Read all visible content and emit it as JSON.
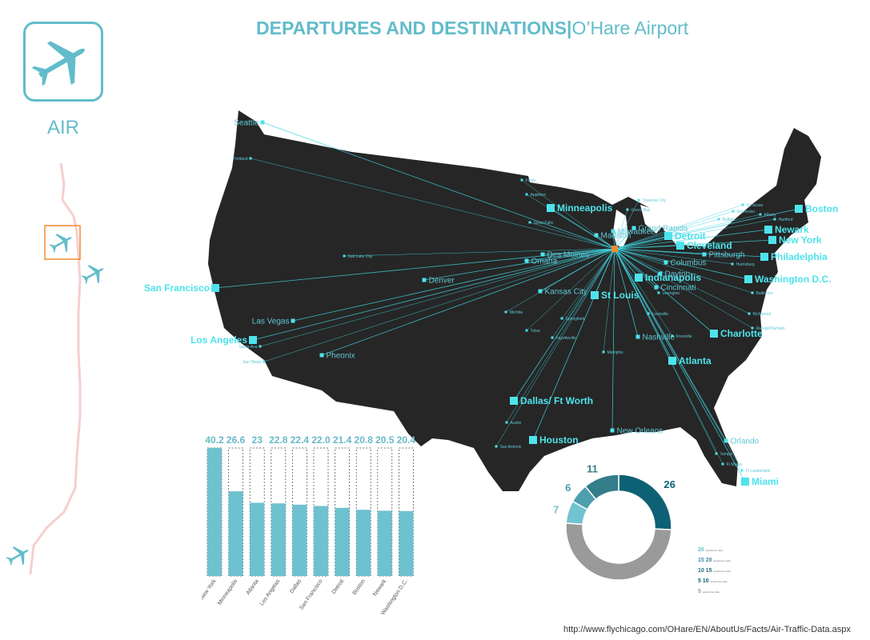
{
  "header": {
    "title_bold": "DEPARTURES AND DESTINATIONS",
    "separator": "|",
    "title_light": "O’Hare Airport"
  },
  "sidebar": {
    "mode_label": "AIR"
  },
  "source_url": "http://www.flychicago.com/OHare/EN/AboutUs/Facts/Air-Traffic-Data.aspx",
  "colors": {
    "accent": "#62bccb",
    "map_fill": "#262626",
    "route_line": "#3fd4e0",
    "city_marker": "#4ee3ec",
    "hub_marker": "#f08b2e",
    "bar": "#6ec1cf",
    "track": "#f6cfcf"
  },
  "icons": [
    "airplane-icon"
  ],
  "chart_data": [
    {
      "type": "map",
      "hub": "O’Hare Airport",
      "destinations": [
        {
          "name": "Seattle",
          "size": "small"
        },
        {
          "name": "Portland",
          "size": "tiny"
        },
        {
          "name": "San Francisco",
          "size": "large"
        },
        {
          "name": "Los Angeles",
          "size": "large"
        },
        {
          "name": "Santa Ana",
          "size": "tiny"
        },
        {
          "name": "San Diego",
          "size": "tiny"
        },
        {
          "name": "Las Vegas",
          "size": "small"
        },
        {
          "name": "Pheonix",
          "size": "small"
        },
        {
          "name": "Salt Lake City",
          "size": "tiny"
        },
        {
          "name": "Denver",
          "size": "small"
        },
        {
          "name": "Fargo",
          "size": "tiny"
        },
        {
          "name": "Appleton",
          "size": "tiny"
        },
        {
          "name": "Sioux Falls",
          "size": "tiny"
        },
        {
          "name": "Minneapolis",
          "size": "large"
        },
        {
          "name": "Madison",
          "size": "small"
        },
        {
          "name": "Milwaukee",
          "size": "small"
        },
        {
          "name": "Green Bay",
          "size": "tiny"
        },
        {
          "name": "Traverse City",
          "size": "tiny"
        },
        {
          "name": "Grand Rapids",
          "size": "small"
        },
        {
          "name": "Detroit",
          "size": "large"
        },
        {
          "name": "Cleveland",
          "size": "large"
        },
        {
          "name": "Des Moines",
          "size": "small"
        },
        {
          "name": "Omaha",
          "size": "small"
        },
        {
          "name": "Kansas City",
          "size": "small"
        },
        {
          "name": "St Louis",
          "size": "large"
        },
        {
          "name": "Indianapolis",
          "size": "large"
        },
        {
          "name": "Columbus",
          "size": "small"
        },
        {
          "name": "Dayton",
          "size": "small"
        },
        {
          "name": "Cincinnati",
          "size": "small"
        },
        {
          "name": "Louisville",
          "size": "tiny"
        },
        {
          "name": "Lexington",
          "size": "tiny"
        },
        {
          "name": "Pittsburgh",
          "size": "small"
        },
        {
          "name": "Boston",
          "size": "large"
        },
        {
          "name": "Newark",
          "size": "large"
        },
        {
          "name": "New York",
          "size": "large"
        },
        {
          "name": "Philadelphia",
          "size": "large"
        },
        {
          "name": "Washington D.C.",
          "size": "large"
        },
        {
          "name": "Baltimore",
          "size": "tiny"
        },
        {
          "name": "Richmond",
          "size": "tiny"
        },
        {
          "name": "Raleigh/Durham",
          "size": "tiny"
        },
        {
          "name": "Charlotte",
          "size": "large"
        },
        {
          "name": "Nashville",
          "size": "small"
        },
        {
          "name": "Knoxville",
          "size": "tiny"
        },
        {
          "name": "Memphis",
          "size": "tiny"
        },
        {
          "name": "Atlanta",
          "size": "large"
        },
        {
          "name": "Tulsa",
          "size": "tiny"
        },
        {
          "name": "Wichita",
          "size": "tiny"
        },
        {
          "name": "Springfield",
          "size": "tiny"
        },
        {
          "name": "Fayetteville",
          "size": "tiny"
        },
        {
          "name": "Dallas/ Ft Worth",
          "size": "large"
        },
        {
          "name": "Austin",
          "size": "tiny"
        },
        {
          "name": "San Antonio",
          "size": "tiny"
        },
        {
          "name": "Houston",
          "size": "large"
        },
        {
          "name": "New Orleans",
          "size": "small"
        },
        {
          "name": "Orlando",
          "size": "small"
        },
        {
          "name": "Tampa",
          "size": "tiny"
        },
        {
          "name": "Ft Myers",
          "size": "tiny"
        },
        {
          "name": "Ft Lauderdale",
          "size": "tiny"
        },
        {
          "name": "Miami",
          "size": "large"
        },
        {
          "name": "Syracuse",
          "size": "tiny"
        },
        {
          "name": "Rochester",
          "size": "tiny"
        },
        {
          "name": "Buffalo",
          "size": "tiny"
        },
        {
          "name": "Hartford",
          "size": "tiny"
        },
        {
          "name": "Harrisburg",
          "size": "tiny"
        },
        {
          "name": "Albany",
          "size": "tiny"
        }
      ]
    },
    {
      "type": "bar",
      "categories": [
        "New York",
        "Minneapolis",
        "Atlanta",
        "Los Angelas",
        "Dallas",
        "San Francisco",
        "Detroit",
        "Boston",
        "Newark",
        "Washington D.C."
      ],
      "values": [
        40.2,
        26.6,
        23,
        22.8,
        22.4,
        22.0,
        21.4,
        20.8,
        20.5,
        20.4
      ],
      "value_labels": [
        "40.2",
        "26.6",
        "23",
        "22.8",
        "22.4",
        "22.0",
        "21.4",
        "20.8",
        "20.5",
        "20.4"
      ],
      "ylim": [
        0,
        40.2
      ]
    },
    {
      "type": "pie",
      "donut": true,
      "slices": [
        {
          "label": "26",
          "value": 26,
          "color": "#0e6174"
        },
        {
          "label": "51",
          "value": 51,
          "color": "#9a9a9a"
        },
        {
          "label": "7",
          "value": 7,
          "color": "#72c3d0"
        },
        {
          "label": "6",
          "value": 6,
          "color": "#4d9eae"
        },
        {
          "label": "11",
          "value": 11,
          "color": "#347d8b"
        }
      ],
      "legend": [
        {
          "range": "20",
          "note": "departures daily"
        },
        {
          "range": "15 20",
          "note": "departures daily"
        },
        {
          "range": "10 15",
          "note": "departures daily"
        },
        {
          "range": "5 10",
          "note": "departures daily"
        },
        {
          "range": "5",
          "note": "departures daily"
        }
      ]
    }
  ]
}
